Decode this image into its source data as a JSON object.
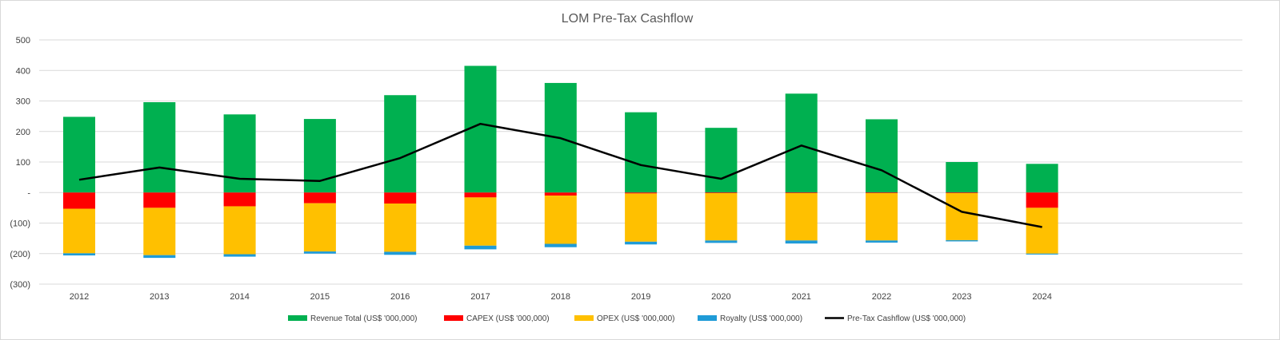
{
  "chart_data": {
    "type": "bar",
    "stacked": true,
    "title": "LOM Pre-Tax Cashflow",
    "categories": [
      "2012",
      "2013",
      "2014",
      "2015",
      "2016",
      "2017",
      "2018",
      "2019",
      "2020",
      "2021",
      "2022",
      "2023",
      "2024"
    ],
    "ylim": [
      -300,
      500
    ],
    "yticks": [
      500,
      400,
      300,
      200,
      100,
      0,
      -100,
      -200,
      -300
    ],
    "ytick_labels": [
      "500",
      "400",
      "300",
      "200",
      "100",
      "-",
      "(100)",
      "(200)",
      "(300)"
    ],
    "grid": true,
    "legend": "bottom",
    "series": [
      {
        "name": "Revenue Total (US$ '000,000)",
        "type": "bar",
        "color": "#00b050",
        "values": [
          248,
          296,
          256,
          241,
          319,
          415,
          359,
          263,
          212,
          324,
          240,
          100,
          94
        ]
      },
      {
        "name": "CAPEX (US$ '000,000)",
        "type": "bar",
        "color": "#ff0000",
        "values": [
          -53,
          -50,
          -45,
          -35,
          -36,
          -16,
          -10,
          -3,
          -2,
          -2,
          -2,
          -2,
          -50
        ]
      },
      {
        "name": "OPEX (US$ '000,000)",
        "type": "bar",
        "color": "#ffc000",
        "values": [
          -146,
          -155,
          -157,
          -158,
          -158,
          -158,
          -158,
          -158,
          -155,
          -155,
          -155,
          -154,
          -150
        ]
      },
      {
        "name": "Royalty (US$ '000,000)",
        "type": "bar",
        "color": "#1f9bd7",
        "values": [
          -7,
          -9,
          -8,
          -7,
          -10,
          -12,
          -11,
          -9,
          -8,
          -10,
          -7,
          -4,
          -3
        ]
      },
      {
        "name": "Pre-Tax Cashflow (US$ '000,000)",
        "type": "line",
        "color": "#000000",
        "values": [
          42,
          82,
          45,
          38,
          113,
          225,
          178,
          90,
          45,
          154,
          73,
          -63,
          -113
        ]
      }
    ]
  }
}
